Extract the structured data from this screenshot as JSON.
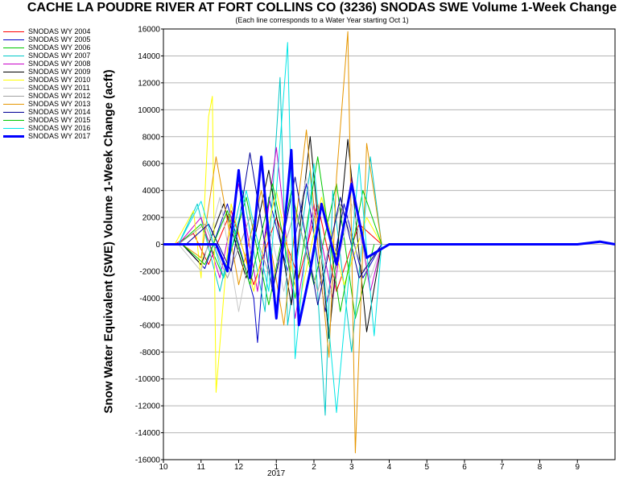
{
  "chart_data": {
    "type": "line",
    "title": "CACHE LA POUDRE RIVER AT FORT COLLINS CO (3236) SNODAS SWE Volume 1-Week Change",
    "subtitle": "(Each line corresponds to a Water Year starting Oct 1)",
    "ylabel": "Snow Water Equivalent (SWE) Volume 1-Week Change (acft)",
    "xlabel": "",
    "x_ticks": [
      "10",
      "11",
      "12",
      "1",
      "2",
      "3",
      "4",
      "5",
      "6",
      "7",
      "8",
      "9"
    ],
    "x_year_label": "2017",
    "y_ticks": [
      -16000,
      -14000,
      -12000,
      -10000,
      -8000,
      -6000,
      -4000,
      -2000,
      0,
      2000,
      4000,
      6000,
      8000,
      10000,
      12000,
      14000,
      16000
    ],
    "ylim": [
      -16000,
      16000
    ],
    "xlim_months": [
      0,
      12
    ],
    "grid": "horizontal",
    "legend_position": "left",
    "series": [
      {
        "name": "SNODAS WY 2004",
        "color": "#ff0000",
        "width": 1,
        "x": [
          0.3,
          0.8,
          1.2,
          1.8,
          2.4,
          3.0,
          3.6,
          4.1,
          4.6,
          5.2,
          5.8
        ],
        "y": [
          0,
          800,
          -1500,
          2500,
          -3000,
          2000,
          -2500,
          3000,
          -3500,
          1500,
          0
        ]
      },
      {
        "name": "SNODAS WY 2005",
        "color": "#0000c8",
        "width": 1,
        "x": [
          0.5,
          1.1,
          1.7,
          2.4,
          2.5,
          2.8,
          3.3,
          3.8,
          4.3,
          4.8,
          5.3,
          5.8
        ],
        "y": [
          0,
          -1800,
          3000,
          -4000,
          -7300,
          3500,
          -2000,
          4500,
          -5000,
          3000,
          -2500,
          0
        ]
      },
      {
        "name": "SNODAS WY 2006",
        "color": "#00c800",
        "width": 1,
        "x": [
          0.4,
          1.0,
          1.6,
          2.2,
          2.8,
          3.4,
          4.0,
          4.6,
          5.1,
          5.6
        ],
        "y": [
          0,
          1500,
          -2500,
          3500,
          -4500,
          4000,
          -3000,
          4500,
          -5500,
          0
        ]
      },
      {
        "name": "SNODAS WY 2007",
        "color": "#00c8c8",
        "width": 1,
        "x": [
          0.4,
          0.9,
          1.5,
          2.1,
          2.7,
          3.1,
          3.3,
          3.9,
          4.3,
          4.5,
          5.0,
          5.5,
          5.8
        ],
        "y": [
          0,
          3000,
          -3500,
          4000,
          -5000,
          12400,
          -6000,
          5500,
          -12700,
          4000,
          -8000,
          6500,
          0
        ]
      },
      {
        "name": "SNODAS WY 2008",
        "color": "#c800c8",
        "width": 1,
        "x": [
          0.4,
          1.0,
          1.5,
          2.0,
          2.5,
          3.0,
          3.5,
          4.0,
          4.5,
          5.0,
          5.5,
          5.8
        ],
        "y": [
          0,
          2000,
          -2500,
          4500,
          -3500,
          7200,
          -5500,
          3000,
          -4000,
          5000,
          -3500,
          0
        ]
      },
      {
        "name": "SNODAS WY 2009",
        "color": "#000000",
        "width": 1,
        "x": [
          0.5,
          1.0,
          1.6,
          2.2,
          2.8,
          3.4,
          3.9,
          4.4,
          4.9,
          5.4,
          5.8
        ],
        "y": [
          0,
          -1500,
          3000,
          -2500,
          5500,
          -4500,
          8000,
          -7000,
          7800,
          -6500,
          0
        ]
      },
      {
        "name": "SNODAS WY 2010",
        "color": "#ffff00",
        "width": 1,
        "x": [
          0.3,
          0.8,
          1.0,
          1.2,
          1.3,
          1.4,
          1.8,
          2.4,
          3.0,
          3.6,
          4.2,
          4.8,
          5.4,
          5.8
        ],
        "y": [
          0,
          2500,
          -2500,
          9500,
          11000,
          -11000,
          3000,
          -3500,
          4000,
          -4500,
          3500,
          -3000,
          2000,
          0
        ]
      },
      {
        "name": "SNODAS WY 2011",
        "color": "#c8c8c8",
        "width": 1,
        "x": [
          0.4,
          1.0,
          1.5,
          2.0,
          2.6,
          3.2,
          3.8,
          4.4,
          5.0,
          5.5,
          5.8
        ],
        "y": [
          0,
          -2000,
          3500,
          -5000,
          4000,
          -3500,
          5000,
          -4000,
          3000,
          -2500,
          0
        ]
      },
      {
        "name": "SNODAS WY 2012",
        "color": "#a0a0a0",
        "width": 1,
        "x": [
          0.4,
          1.1,
          1.7,
          2.3,
          2.9,
          3.5,
          4.1,
          4.7,
          5.3,
          5.8
        ],
        "y": [
          0,
          1500,
          -2500,
          2000,
          -3000,
          2500,
          -3500,
          3000,
          -2000,
          0
        ]
      },
      {
        "name": "SNODAS WY 2013",
        "color": "#e69600",
        "width": 1,
        "x": [
          0.5,
          1.0,
          1.4,
          2.0,
          2.6,
          3.2,
          3.8,
          4.4,
          4.6,
          4.9,
          5.1,
          5.4,
          5.8
        ],
        "y": [
          0,
          -1000,
          6500,
          -3000,
          4000,
          -6000,
          8500,
          -8400,
          5000,
          15800,
          -15500,
          7500,
          0
        ]
      },
      {
        "name": "SNODAS WY 2014",
        "color": "#000096",
        "width": 1,
        "x": [
          0.6,
          1.2,
          1.8,
          2.3,
          2.9,
          3.5,
          4.1,
          4.7,
          5.2,
          5.8
        ],
        "y": [
          0,
          1500,
          -2000,
          6800,
          -3500,
          5000,
          -4500,
          3500,
          -2500,
          0
        ]
      },
      {
        "name": "SNODAS WY 2015",
        "color": "#00c800",
        "width": 1,
        "x": [
          0.5,
          1.1,
          1.7,
          2.3,
          2.9,
          3.5,
          4.1,
          4.7,
          5.3,
          5.8
        ],
        "y": [
          0,
          -1500,
          2500,
          -3000,
          4500,
          -4000,
          6500,
          -5000,
          4000,
          0
        ]
      },
      {
        "name": "SNODAS WY 2016",
        "color": "#00e6e6",
        "width": 1,
        "x": [
          0.4,
          1.0,
          1.6,
          2.2,
          2.8,
          3.3,
          3.5,
          4.0,
          4.6,
          5.2,
          5.6,
          5.8
        ],
        "y": [
          0,
          3200,
          -2500,
          4000,
          -3500,
          15000,
          -8500,
          6000,
          -12500,
          6000,
          -6800,
          0
        ]
      },
      {
        "name": "SNODAS WY 2017",
        "color": "#0000ff",
        "width": 3,
        "x": [
          0,
          0.6,
          1.4,
          1.7,
          2.0,
          2.3,
          2.6,
          3.0,
          3.4,
          3.6,
          3.9,
          4.2,
          4.6,
          5.0,
          5.4,
          6.0,
          6.5,
          7.0,
          8.0,
          9.0,
          10.0,
          11.0,
          11.6,
          12.0
        ],
        "y": [
          0,
          0,
          0,
          -2000,
          5500,
          -2500,
          6500,
          -5500,
          7000,
          -6000,
          -2000,
          3000,
          -1500,
          4500,
          -1000,
          0,
          0,
          0,
          0,
          0,
          0,
          0,
          200,
          0
        ]
      }
    ]
  }
}
